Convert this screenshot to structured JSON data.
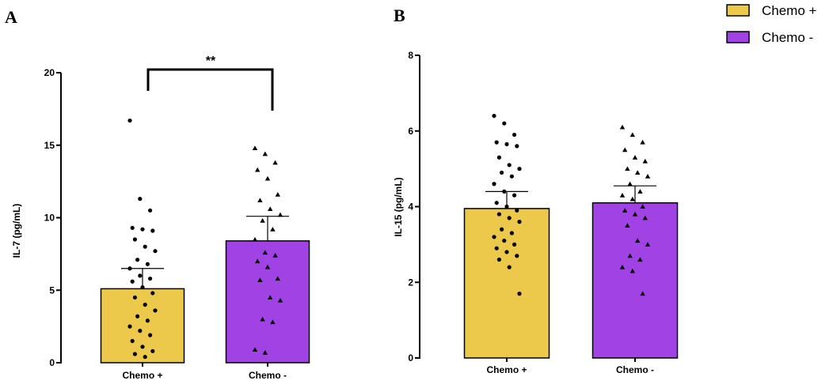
{
  "chart_data": [
    {
      "panel": "A",
      "type": "bar",
      "ylabel": "IL-7 (pg/mL)",
      "ylim": [
        0,
        20
      ],
      "yticks": [
        0,
        5,
        10,
        15,
        20
      ],
      "categories": [
        "Chemo +",
        "Chemo -"
      ],
      "colors": [
        "#ecc94b",
        "#a143e4"
      ],
      "values": [
        5.1,
        8.4
      ],
      "error": [
        1.4,
        1.7
      ],
      "significance": {
        "label": "**",
        "between": [
          0,
          1
        ]
      },
      "points": [
        [
          16.7,
          11.3,
          10.5,
          9.3,
          9.2,
          9.1,
          8.5,
          8.0,
          7.7,
          7.1,
          6.8,
          6.5,
          6.0,
          5.8,
          5.6,
          5.2,
          4.8,
          4.5,
          4.0,
          3.6,
          3.2,
          2.9,
          2.5,
          2.2,
          1.9,
          1.5,
          1.1,
          0.8,
          0.6,
          0.4
        ],
        [
          14.8,
          14.4,
          13.8,
          13.3,
          12.7,
          11.6,
          11.2,
          10.6,
          10.2,
          9.8,
          9.2,
          8.5,
          7.6,
          7.4,
          7.0,
          6.6,
          5.8,
          5.7,
          4.5,
          4.3,
          3.0,
          2.8,
          0.9,
          0.7
        ]
      ]
    },
    {
      "panel": "B",
      "type": "bar",
      "ylabel": "IL-15 (pg/mL)",
      "ylim": [
        0,
        8
      ],
      "yticks": [
        0,
        2,
        4,
        6,
        8
      ],
      "categories": [
        "Chemo +",
        "Chemo -"
      ],
      "colors": [
        "#ecc94b",
        "#a143e4"
      ],
      "values": [
        3.95,
        4.1
      ],
      "error": [
        0.45,
        0.45
      ],
      "points": [
        [
          6.4,
          6.2,
          5.9,
          5.7,
          5.65,
          5.6,
          5.3,
          5.1,
          5.0,
          4.9,
          4.8,
          4.6,
          4.4,
          4.3,
          4.1,
          4.0,
          3.9,
          3.8,
          3.7,
          3.6,
          3.4,
          3.3,
          3.2,
          3.1,
          3.0,
          2.9,
          2.8,
          2.7,
          2.6,
          2.4,
          1.7
        ],
        [
          6.1,
          5.9,
          5.7,
          5.5,
          5.3,
          5.2,
          5.0,
          4.9,
          4.8,
          4.6,
          4.4,
          4.3,
          4.2,
          4.0,
          3.9,
          3.8,
          3.7,
          3.5,
          3.1,
          3.0,
          2.7,
          2.6,
          2.4,
          2.3,
          1.7
        ]
      ]
    }
  ],
  "legend": {
    "position": "top-right",
    "items": [
      {
        "label": "Chemo +",
        "color": "#ecc94b"
      },
      {
        "label": "Chemo -",
        "color": "#a143e4"
      }
    ]
  }
}
